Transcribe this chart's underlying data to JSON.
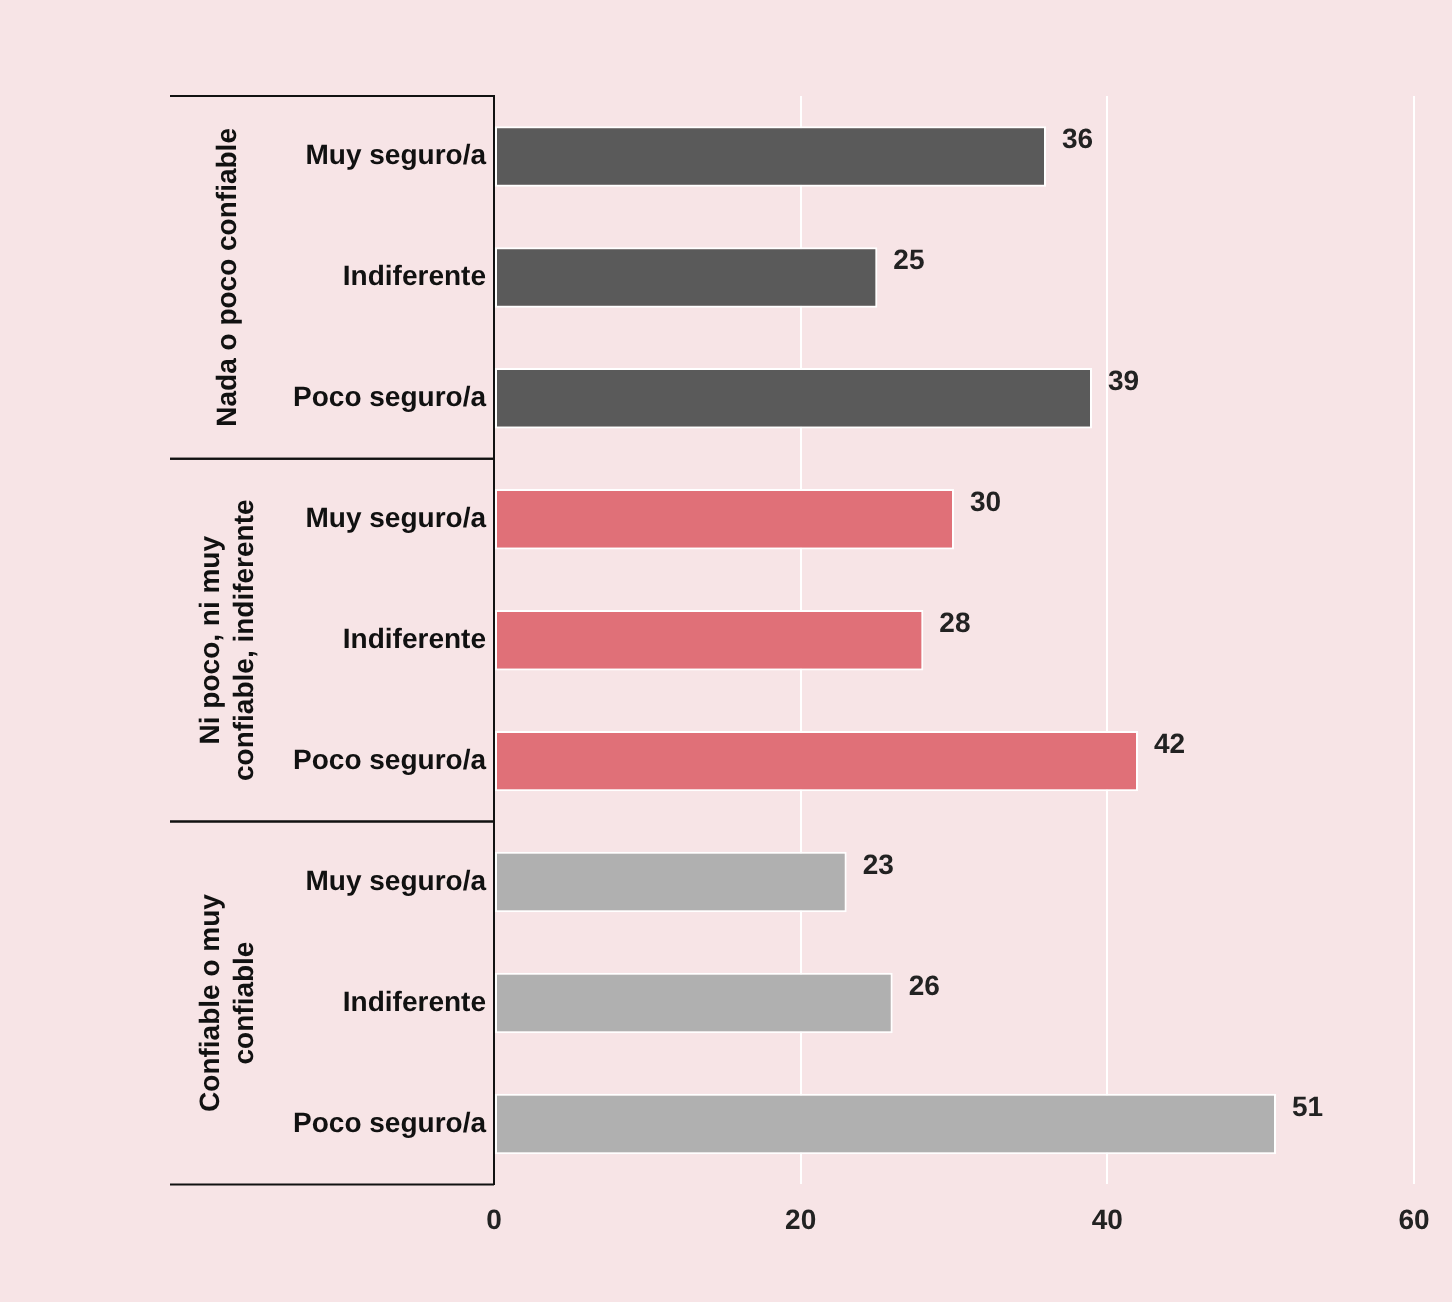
{
  "chart_data": {
    "type": "bar",
    "orientation": "horizontal",
    "categories": [
      "Muy seguro/a",
      "Indiferente",
      "Poco seguro/a",
      "Muy seguro/a",
      "Indiferente",
      "Poco seguro/a",
      "Muy seguro/a",
      "Indiferente",
      "Poco seguro/a"
    ],
    "values": [
      36,
      25,
      39,
      30,
      28,
      42,
      23,
      26,
      51
    ],
    "colors": [
      "#5a5a5a",
      "#5a5a5a",
      "#5a5a5a",
      "#e07078",
      "#e07078",
      "#e07078",
      "#b0b0b0",
      "#b0b0b0",
      "#b0b0b0"
    ],
    "xlim": [
      0,
      60
    ],
    "xticks": [
      0,
      20,
      40,
      60
    ],
    "grid": "x",
    "data_labels": true,
    "legend": false,
    "annotations": [
      "Nada o poco confiable",
      "Ni poco, ni muy confiable, indiferente",
      "Confiable o muy confiable"
    ]
  }
}
